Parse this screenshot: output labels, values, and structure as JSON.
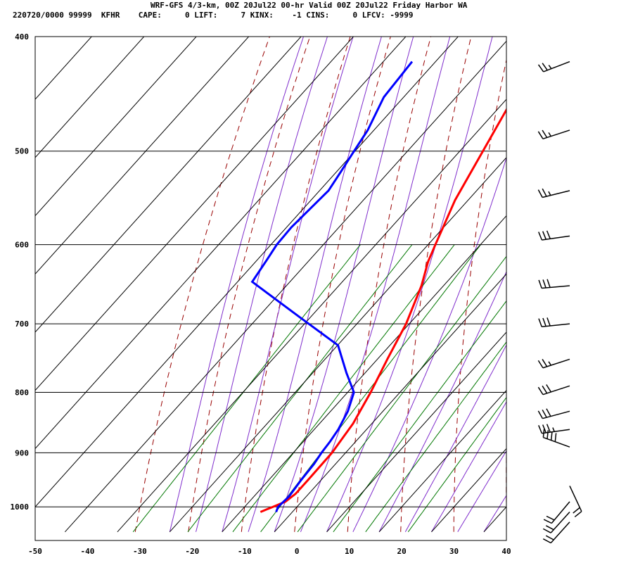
{
  "header": {
    "title": "WRF-GFS 4/3-km, 00Z 20Jul22 00-hr Valid 00Z 20Jul22 Friday Harbor WA",
    "indices": "220720/0000 99999  KFHR    CAPE:     0 LIFT:     7 KINX:    -1 CINS:     0 LFCV: -9999"
  },
  "colors": {
    "temperature": "#ff0000",
    "dewpoint": "#0000ff",
    "isotherm": "#000000",
    "dry_adiabat": "#990000",
    "moist_adiabat": "#7f2ccc",
    "mixing_ratio": "#007700"
  },
  "chart_data": {
    "type": "line",
    "title": "WRF-GFS 4/3-km, 00Z 20Jul22 00-hr Valid 00Z 20Jul22 Friday Harbor WA",
    "x_axis": {
      "min": -50,
      "max": 40,
      "ticks": [
        "-50",
        "-40",
        "-30",
        "-20",
        "-10",
        "0",
        "10",
        "20",
        "30",
        "40"
      ]
    },
    "y_axis": {
      "scale": "log-pressure",
      "min": 400,
      "max": 1040,
      "ticks": [
        "400",
        "500",
        "600",
        "700",
        "800",
        "900",
        "1000"
      ]
    },
    "grid": true,
    "series": [
      {
        "key": "temperature",
        "color": "#ff0000",
        "pressure": [
          420,
          450,
          500,
          550,
          600,
          620,
          650,
          700,
          750,
          800,
          850,
          900,
          950,
          975,
          990,
          1000,
          1010
        ],
        "temp": [
          -31.5,
          -29,
          -25.6,
          -22.5,
          -18.6,
          -17.1,
          -14.2,
          -10.6,
          -8.1,
          -5.6,
          -3.6,
          -2.6,
          -2.5,
          -2.5,
          -3.1,
          -4.6,
          -6.1
        ]
      },
      {
        "key": "dewpoint",
        "color": "#0000ff",
        "pressure": [
          420,
          450,
          480,
          500,
          520,
          540,
          580,
          600,
          620,
          645,
          690,
          730,
          770,
          800,
          830,
          860,
          880,
          900,
          920,
          950,
          980,
          1000,
          1010
        ],
        "dewpoint": [
          -54.5,
          -53.8,
          -51.2,
          -50.2,
          -49.2,
          -48.3,
          -49.1,
          -48.9,
          -48.1,
          -47.2,
          -32.4,
          -19.9,
          -13.6,
          -8.8,
          -6.7,
          -5.4,
          -4.9,
          -4.6,
          -4.1,
          -3.8,
          -3.3,
          -3.6,
          -3.1
        ]
      }
    ],
    "wind_barbs": [
      {
        "pressure": 420,
        "direction": 249,
        "speed_kt": 25
      },
      {
        "pressure": 480,
        "direction": 252,
        "speed_kt": 25
      },
      {
        "pressure": 540,
        "direction": 256,
        "speed_kt": 25
      },
      {
        "pressure": 590,
        "direction": 262,
        "speed_kt": 30
      },
      {
        "pressure": 650,
        "direction": 265,
        "speed_kt": 30
      },
      {
        "pressure": 700,
        "direction": 264,
        "speed_kt": 30
      },
      {
        "pressure": 750,
        "direction": 252,
        "speed_kt": 25
      },
      {
        "pressure": 790,
        "direction": 252,
        "speed_kt": 30
      },
      {
        "pressure": 830,
        "direction": 255,
        "speed_kt": 30
      },
      {
        "pressure": 860,
        "direction": 262,
        "speed_kt": 35
      },
      {
        "pressure": 890,
        "direction": 290,
        "speed_kt": 40
      },
      {
        "pressure": 960,
        "direction": 155,
        "speed_kt": 20
      },
      {
        "pressure": 990,
        "direction": 220,
        "speed_kt": 20
      },
      {
        "pressure": 1010,
        "direction": 222,
        "speed_kt": 20
      },
      {
        "pressure": 1030,
        "direction": 222,
        "speed_kt": 20
      }
    ]
  }
}
